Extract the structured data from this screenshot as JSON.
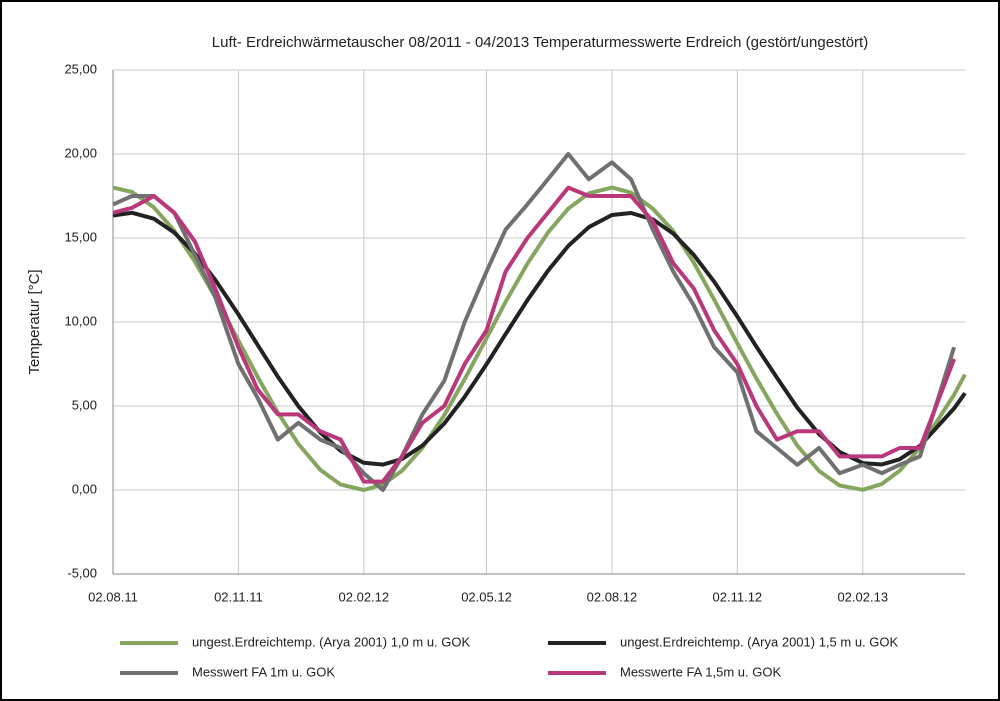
{
  "chart_data": {
    "type": "line",
    "title": "Luft- Erdreichwärmetauscher 08/2011 - 04/2013 Temperaturmesswerte Erdreich (gestört/ungestört)",
    "y_label": "Temperatur [°C]",
    "x": [
      "02.08.11",
      "16.08.11",
      "01.09.11",
      "16.09.11",
      "01.10.11",
      "16.10.11",
      "02.11.11",
      "16.11.11",
      "01.12.11",
      "16.12.11",
      "01.01.12",
      "16.01.12",
      "02.02.12",
      "16.02.12",
      "01.03.12",
      "16.03.12",
      "01.04.12",
      "16.04.12",
      "02.05.12",
      "16.05.12",
      "01.06.12",
      "16.06.12",
      "01.07.12",
      "16.07.12",
      "02.08.12",
      "16.08.12",
      "01.09.12",
      "16.09.12",
      "01.10.12",
      "16.10.12",
      "02.11.12",
      "16.11.12",
      "01.12.12",
      "16.12.12",
      "01.01.13",
      "16.01.13",
      "02.02.13",
      "16.02.13",
      "01.03.13",
      "16.03.13",
      "10.04.13",
      "18.04.13"
    ],
    "series": [
      {
        "name": "ungest.Erdreichtemp. (Arya 2001) 1,0 m u. GOK",
        "color": "#86a660",
        "values": [
          18,
          17.74,
          16.82,
          15.43,
          13.61,
          11.48,
          8.89,
          6.75,
          4.6,
          2.74,
          1.21,
          0.32,
          0,
          0.32,
          1.14,
          2.51,
          4.46,
          6.6,
          9.03,
          11.2,
          13.47,
          15.32,
          16.75,
          17.66,
          18,
          17.7,
          16.75,
          15.41,
          13.54,
          11.33,
          8.73,
          6.64,
          4.54,
          2.64,
          1.13,
          0.27,
          0.01,
          0.36,
          1.14,
          2.51,
          5.67,
          6.87
        ]
      },
      {
        "name": "ungest.Erdreichtemp. (Arya 2001) 1,5 m u. GOK",
        "color": "#222222",
        "values": [
          16.34,
          16.5,
          16.15,
          15.32,
          14.09,
          12.51,
          10.45,
          8.65,
          6.74,
          4.99,
          3.43,
          2.33,
          1.62,
          1.51,
          1.84,
          2.64,
          3.96,
          5.55,
          7.48,
          9.28,
          11.3,
          13.05,
          14.53,
          15.64,
          16.37,
          16.49,
          16.11,
          15.26,
          14,
          12.4,
          10.33,
          8.53,
          6.69,
          4.9,
          3.33,
          2.27,
          1.6,
          1.52,
          1.83,
          2.63,
          4.86,
          5.76
        ]
      },
      {
        "name": "Messwert FA 1m u. GOK",
        "color": "#707070",
        "values": [
          17,
          17.5,
          17.5,
          16.5,
          14,
          11.5,
          7.5,
          5.5,
          3,
          4,
          3,
          2.5,
          1,
          0,
          2,
          4.5,
          6.5,
          10,
          13,
          15.5,
          17,
          18.5,
          20,
          18.5,
          19.5,
          18.5,
          15.5,
          13,
          11,
          8.5,
          7,
          3.5,
          2.5,
          1.5,
          2.5,
          1,
          1.5,
          1,
          1.5,
          2,
          8.5,
          null
        ]
      },
      {
        "name": "Messwerte FA 1,5m u. GOK",
        "color": "#b8387a",
        "values": [
          16.5,
          16.8,
          17.5,
          16.5,
          14.8,
          12,
          8.5,
          6,
          4.5,
          4.5,
          3.5,
          3,
          0.5,
          0.5,
          2,
          4,
          5,
          7.5,
          9.5,
          13,
          15,
          16.5,
          18,
          17.5,
          17.5,
          17.5,
          16,
          13.5,
          12,
          9.5,
          7.5,
          5,
          3,
          3.5,
          3.5,
          2,
          2,
          2,
          2.5,
          2.5,
          7.8,
          null
        ]
      }
    ],
    "xlim": [
      "02.08.11",
      "18.04.13"
    ],
    "xticks": [
      "02.08.11",
      "02.11.11",
      "02.02.12",
      "02.05.12",
      "02.08.12",
      "02.11.12",
      "02.02.13"
    ],
    "ylim": [
      -5,
      25
    ],
    "yticks": [
      {
        "value": -5,
        "label": "-5,00"
      },
      {
        "value": 0,
        "label": "0,00"
      },
      {
        "value": 5,
        "label": "5,00"
      },
      {
        "value": 10,
        "label": "10,00"
      },
      {
        "value": 15,
        "label": "15,00"
      },
      {
        "value": 20,
        "label": "20,00"
      },
      {
        "value": 25,
        "label": "25,00"
      }
    ],
    "grid": true,
    "legend": "bottom"
  }
}
